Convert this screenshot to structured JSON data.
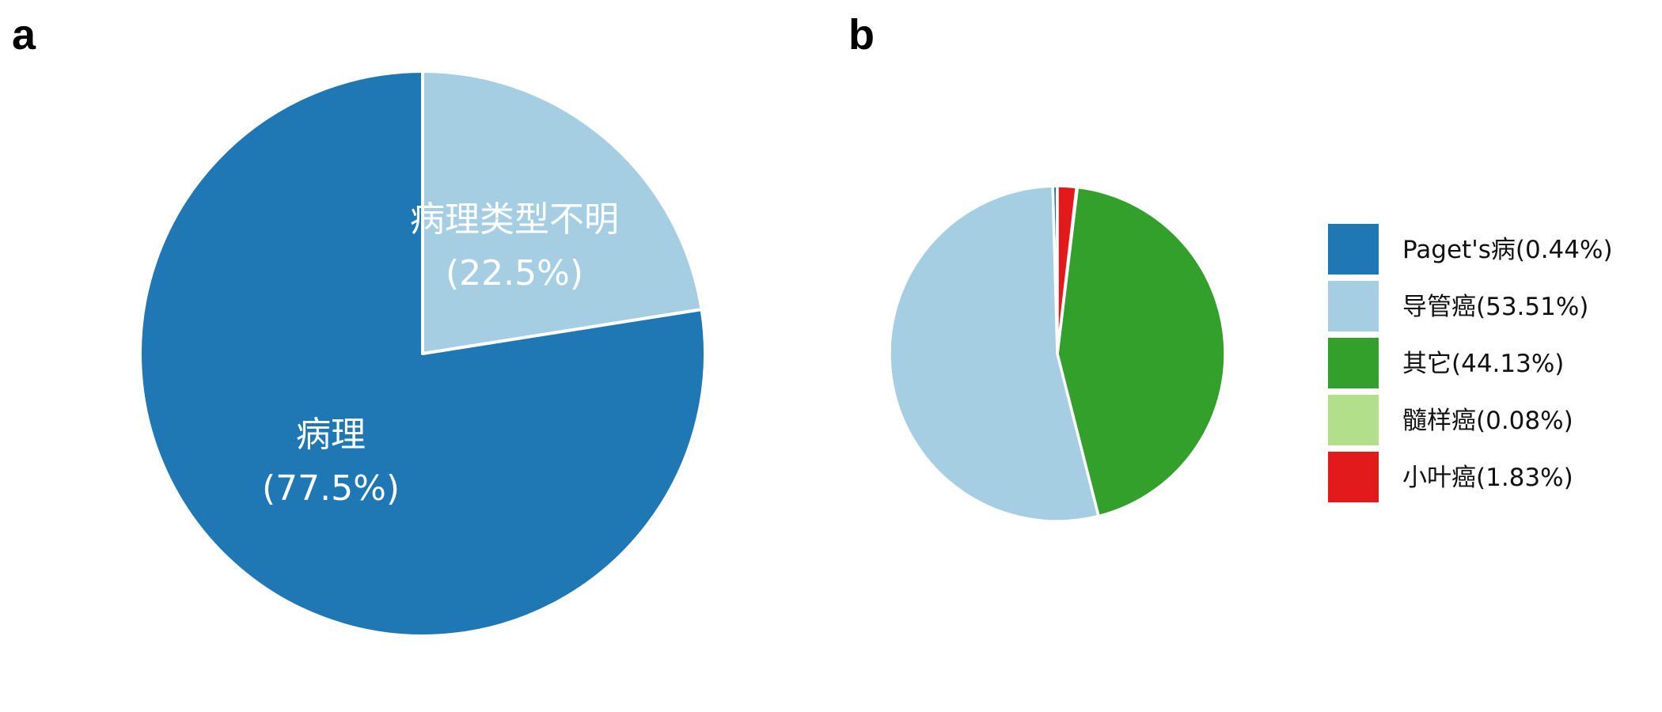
{
  "chart_data": [
    {
      "type": "pie",
      "panel_label": "a",
      "start_angle_deg": 0,
      "direction": "clockwise",
      "slices": [
        {
          "name": "病理类型不明",
          "percent_label": "(22.5%)",
          "value": 22.5,
          "color": "#a6cee3"
        },
        {
          "name": "病理",
          "percent_label": "(77.5%)",
          "value": 77.5,
          "color": "#1f78b4"
        }
      ],
      "legend": "none"
    },
    {
      "type": "pie",
      "panel_label": "b",
      "start_angle_deg": 0,
      "direction": "counterclockwise",
      "slices": [
        {
          "name": "Paget's病",
          "legend_label": "Paget's病(0.44%)",
          "value": 0.44,
          "color": "#1f78b4"
        },
        {
          "name": "导管癌",
          "legend_label": "导管癌(53.51%)",
          "value": 53.51,
          "color": "#a6cee3"
        },
        {
          "name": "其它",
          "legend_label": "其它(44.13%)",
          "value": 44.13,
          "color": "#33a02c"
        },
        {
          "name": "髓样癌",
          "legend_label": "髓样癌(0.08%)",
          "value": 0.08,
          "color": "#b2df8a"
        },
        {
          "name": "小叶癌",
          "legend_label": "小叶癌(1.83%)",
          "value": 1.83,
          "color": "#e31a1c"
        }
      ],
      "legend": "right"
    }
  ]
}
